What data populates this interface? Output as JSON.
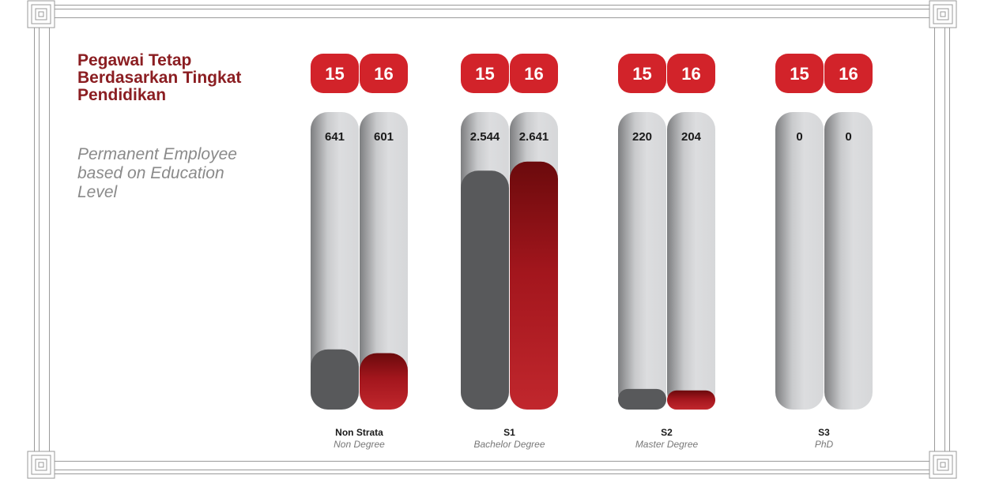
{
  "title": "Pegawai Tetap\nBerdasarkan Tingkat\nPendidikan",
  "subtitle": "Permanent Employee\nbased on Education\nLevel",
  "colors": {
    "series_2015": "#58595b",
    "series_2016": "#be1e2d",
    "series_2016_dark": "#6b0a0c",
    "badge": "#d2232a",
    "track_light": "#dcdddf",
    "track_dark": "#7d7e80",
    "title": "#8b1e22"
  },
  "chart_data": {
    "type": "bar",
    "series_badges": [
      "15",
      "16"
    ],
    "categories": [
      {
        "label": "Non Strata",
        "sublabel": "Non Degree",
        "values": [
          641,
          601
        ],
        "value_labels": [
          "641",
          "601"
        ]
      },
      {
        "label": "S1",
        "sublabel": "Bachelor Degree",
        "values": [
          2544,
          2641
        ],
        "value_labels": [
          "2.544",
          "2.641"
        ]
      },
      {
        "label": "S2",
        "sublabel": "Master Degree",
        "values": [
          220,
          204
        ],
        "value_labels": [
          "220",
          "204"
        ]
      },
      {
        "label": "S3",
        "sublabel": "PhD",
        "values": [
          0,
          0
        ],
        "value_labels": [
          "0",
          "0"
        ]
      }
    ],
    "ylim": [
      0,
      2950
    ],
    "grid": false,
    "legend": "none"
  }
}
